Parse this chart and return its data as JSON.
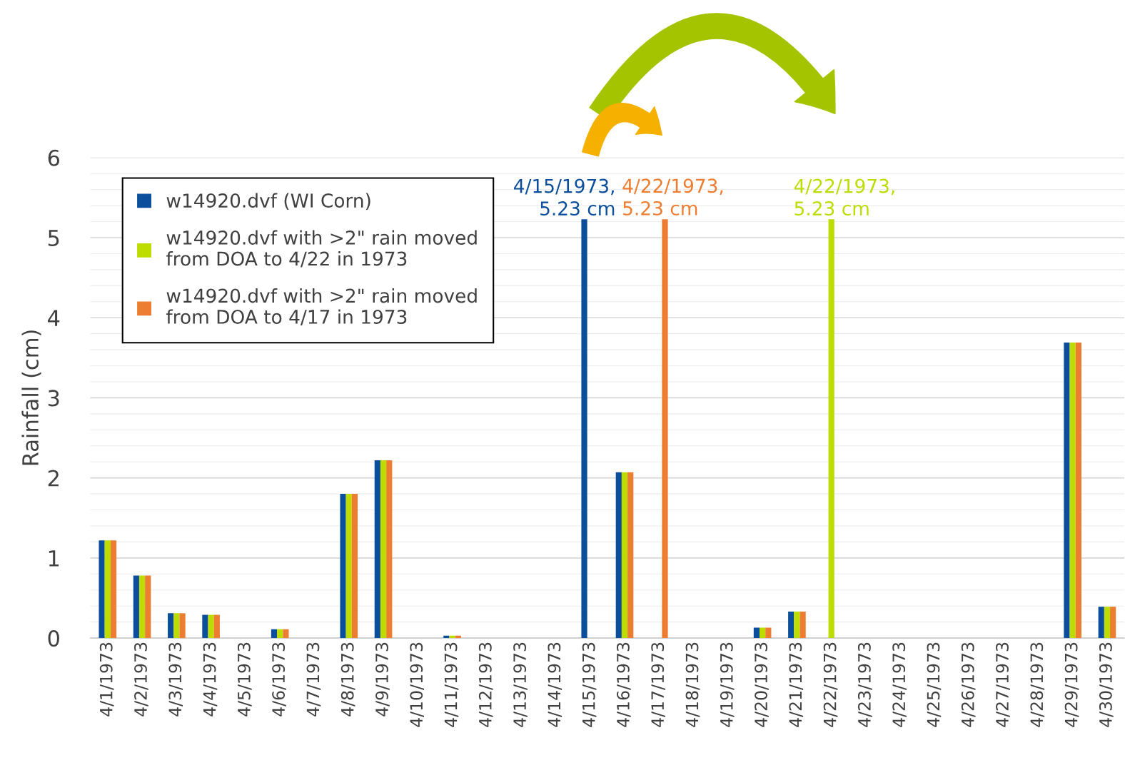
{
  "chart_data": {
    "type": "bar",
    "ylabel": "Rainfall (cm)",
    "categories": [
      "4/1/1973",
      "4/2/1973",
      "4/3/1973",
      "4/4/1973",
      "4/5/1973",
      "4/6/1973",
      "4/7/1973",
      "4/8/1973",
      "4/9/1973",
      "4/10/1973",
      "4/11/1973",
      "4/12/1973",
      "4/13/1973",
      "4/14/1973",
      "4/15/1973",
      "4/16/1973",
      "4/17/1973",
      "4/18/1973",
      "4/19/1973",
      "4/20/1973",
      "4/21/1973",
      "4/22/1973",
      "4/23/1973",
      "4/24/1973",
      "4/25/1973",
      "4/26/1973",
      "4/27/1973",
      "4/28/1973",
      "4/29/1973",
      "4/30/1973"
    ],
    "series": [
      {
        "name": "w14920.dvf (WI Corn)",
        "color": "#0b4f9c",
        "values": [
          1.22,
          0.78,
          0.31,
          0.29,
          0,
          0.11,
          0,
          1.8,
          2.22,
          0,
          0.03,
          0,
          0,
          0,
          5.23,
          2.07,
          0,
          0,
          0,
          0.13,
          0.33,
          0,
          0,
          0,
          0,
          0,
          0,
          0,
          3.69,
          0.39
        ]
      },
      {
        "name": "w14920.dvf with >2\" rain moved\nfrom DOA to 4/22 in 1973",
        "color": "#bddc00",
        "values": [
          1.22,
          0.78,
          0.31,
          0.29,
          0,
          0.11,
          0,
          1.8,
          2.22,
          0,
          0.03,
          0,
          0,
          0,
          0,
          2.07,
          0,
          0,
          0,
          0.13,
          0.33,
          5.23,
          0,
          0,
          0,
          0,
          0,
          0,
          3.69,
          0.39
        ]
      },
      {
        "name": "w14920.dvf with >2\" rain moved\nfrom DOA to 4/17 in 1973",
        "color": "#ed7d31",
        "values": [
          1.22,
          0.78,
          0.31,
          0.29,
          0,
          0.11,
          0,
          1.8,
          2.22,
          0,
          0.03,
          0,
          0,
          0,
          0,
          2.07,
          5.23,
          0,
          0,
          0.13,
          0.33,
          0,
          0,
          0,
          0,
          0,
          0,
          0,
          3.69,
          0.39
        ]
      }
    ],
    "ylim": [
      0,
      6
    ],
    "yticks": [
      0,
      1,
      2,
      3,
      4,
      5,
      6
    ],
    "grid": "y",
    "legend": "top left",
    "annotations": [
      {
        "text": "4/15/1973,\n5.23 cm",
        "x": "4/15/1973",
        "y": 5.23
      },
      "4/22/1973,\n5.23 cm",
      {
        "text": "4/22/1973,\n5.23 cm",
        "x": "4/22/1973",
        "y": 5.23
      }
    ]
  }
}
